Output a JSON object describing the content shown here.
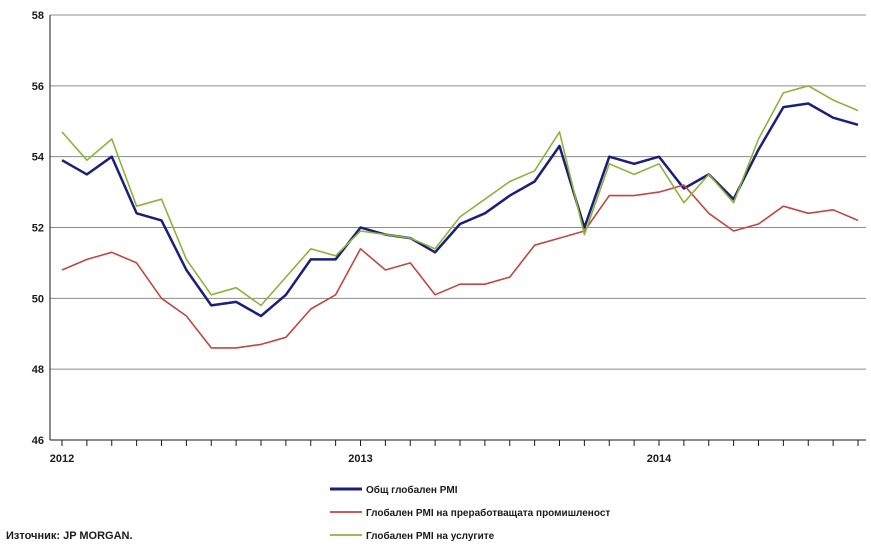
{
  "chart_data": {
    "type": "line",
    "x": [
      "2012-01",
      "2012-02",
      "2012-03",
      "2012-04",
      "2012-05",
      "2012-06",
      "2012-07",
      "2012-08",
      "2012-09",
      "2012-10",
      "2012-11",
      "2012-12",
      "2013-01",
      "2013-02",
      "2013-03",
      "2013-04",
      "2013-05",
      "2013-06",
      "2013-07",
      "2013-08",
      "2013-09",
      "2013-10",
      "2013-11",
      "2013-12",
      "2014-01",
      "2014-02",
      "2014-03",
      "2014-04",
      "2014-05",
      "2014-06",
      "2014-07",
      "2014-08",
      "2014-09"
    ],
    "x_tick_labels": [
      "2012",
      "2013",
      "2014"
    ],
    "y_ticks": [
      "46",
      "48",
      "50",
      "52",
      "54",
      "56",
      "58"
    ],
    "ylim": [
      46,
      58
    ],
    "grid": true,
    "legend_position": "bottom",
    "series": [
      {
        "name": "Общ глобален PMI",
        "color": "#1a1f7a",
        "values": [
          53.9,
          53.5,
          54.0,
          52.4,
          52.2,
          50.8,
          49.8,
          49.9,
          49.5,
          50.1,
          51.1,
          51.1,
          52.0,
          51.8,
          51.7,
          51.3,
          52.1,
          52.4,
          52.9,
          53.3,
          54.3,
          52.0,
          54.0,
          53.8,
          54.0,
          53.1,
          53.5,
          52.8,
          54.2,
          55.4,
          55.5,
          55.1,
          54.9
        ]
      },
      {
        "name": "Глобален PMI на преработващата промишленост",
        "color": "#c2473f",
        "values": [
          50.8,
          51.1,
          51.3,
          51.0,
          50.0,
          49.5,
          48.6,
          48.6,
          48.7,
          48.9,
          49.7,
          50.1,
          51.4,
          50.8,
          51.0,
          50.1,
          50.4,
          50.4,
          50.6,
          51.5,
          51.7,
          51.9,
          52.9,
          52.9,
          53.0,
          53.2,
          52.4,
          51.9,
          52.1,
          52.6,
          52.4,
          52.5,
          52.2
        ]
      },
      {
        "name": "Глобален PMI на услугите",
        "color": "#8cb43c",
        "values": [
          54.7,
          53.9,
          54.5,
          52.6,
          52.8,
          51.1,
          50.1,
          50.3,
          49.8,
          50.6,
          51.4,
          51.2,
          51.9,
          51.8,
          51.7,
          51.4,
          52.3,
          52.8,
          53.3,
          53.6,
          54.7,
          51.8,
          53.8,
          53.5,
          53.8,
          52.7,
          53.5,
          52.7,
          54.5,
          55.8,
          56.0,
          55.6,
          55.3
        ]
      }
    ]
  },
  "source": "Източник: JP MORGAN."
}
